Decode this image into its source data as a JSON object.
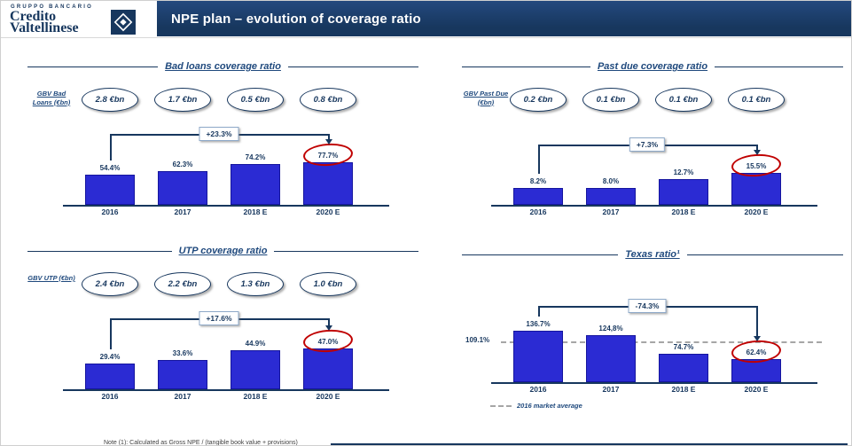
{
  "slide": {
    "logo": {
      "pre": "GRUPPO BANCARIO",
      "line1": "Credito",
      "line2": "Valtellinese"
    },
    "title": "NPE plan – evolution of coverage ratio",
    "footnote": "Note (1): Calculated as Gross NPE / (tangible book value + provisions)"
  },
  "colors": {
    "navy": "#17375E",
    "title_blue": "#1F497D",
    "bar_blue": "#2B2BD3",
    "highlight_red": "#C00000",
    "dashed_gray": "#A6A6A6"
  },
  "chart_data": [
    {
      "type": "bar",
      "title": "Bad loans coverage ratio",
      "gbv_label": "GBV Bad Loans (€bn)",
      "gbv_values": [
        "2.8 €bn",
        "1.7 €bn",
        "0.5 €bn",
        "0.8 €bn"
      ],
      "categories": [
        "2016",
        "2017",
        "2018 E",
        "2020 E"
      ],
      "values": [
        54.4,
        62.3,
        74.2,
        77.7
      ],
      "labels": [
        "54.4%",
        "62.3%",
        "74.2%",
        "77.7%"
      ],
      "delta": "+23.3%",
      "highlight_index": 3,
      "unit": "%"
    },
    {
      "type": "bar",
      "title": "Past due coverage ratio",
      "gbv_label": "GBV Past Due (€bn)",
      "gbv_values": [
        "0.2 €bn",
        "0.1 €bn",
        "0.1 €bn",
        "0.1 €bn"
      ],
      "categories": [
        "2016",
        "2017",
        "2018 E",
        "2020 E"
      ],
      "values": [
        8.2,
        8.0,
        12.7,
        15.5
      ],
      "labels": [
        "8.2%",
        "8.0%",
        "12.7%",
        "15.5%"
      ],
      "delta": "+7.3%",
      "highlight_index": 3,
      "unit": "%"
    },
    {
      "type": "bar",
      "title": "UTP coverage ratio",
      "gbv_label": "GBV UTP (€bn)",
      "gbv_values": [
        "2.4 €bn",
        "2.2 €bn",
        "1.3 €bn",
        "1.0 €bn"
      ],
      "categories": [
        "2016",
        "2017",
        "2018 E",
        "2020 E"
      ],
      "values": [
        29.4,
        33.6,
        44.9,
        47.0
      ],
      "labels": [
        "29.4%",
        "33.6%",
        "44.9%",
        "47.0%"
      ],
      "delta": "+17.6%",
      "highlight_index": 3,
      "unit": "%"
    },
    {
      "type": "bar",
      "title": "Texas ratio¹",
      "categories": [
        "2016",
        "2017",
        "2018 E",
        "2020 E"
      ],
      "values": [
        136.7,
        124.8,
        74.7,
        62.4
      ],
      "labels": [
        "136.7%",
        "124,8%",
        "74.7%",
        "62.4%"
      ],
      "delta": "-74.3%",
      "highlight_index": 3,
      "unit": "%",
      "reference_line": {
        "value": 109.1,
        "label": "109.1%",
        "legend": "2016 market average"
      }
    }
  ]
}
